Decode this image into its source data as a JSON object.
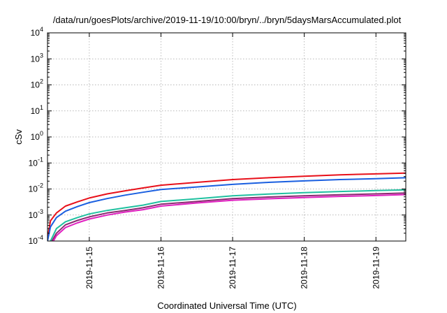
{
  "chart_data": {
    "type": "line",
    "title": "/data/run/goesPlots/archive/2019-11-19/10:00/bryn/../bryn/5daysMarsAccumulated.plot",
    "xlabel": "Coordinated Universal Time (UTC)",
    "ylabel": "cSv",
    "y_scale": "log",
    "ylim": [
      0.0001,
      10000
    ],
    "y_ticks": [
      {
        "base": "10",
        "exp": "-4",
        "value": 0.0001
      },
      {
        "base": "10",
        "exp": "-3",
        "value": 0.001
      },
      {
        "base": "10",
        "exp": "-2",
        "value": 0.01
      },
      {
        "base": "10",
        "exp": "-1",
        "value": 0.1
      },
      {
        "base": "10",
        "exp": "0",
        "value": 1
      },
      {
        "base": "10",
        "exp": "1",
        "value": 10
      },
      {
        "base": "10",
        "exp": "2",
        "value": 100
      },
      {
        "base": "10",
        "exp": "3",
        "value": 1000
      },
      {
        "base": "10",
        "exp": "4",
        "value": 10000
      }
    ],
    "xlim": [
      "2019-11-14 10:00",
      "2019-11-19 10:00"
    ],
    "x_ticks": [
      {
        "label": "2019-11-15",
        "value": "2019-11-15 00:00"
      },
      {
        "label": "2019-11-16",
        "value": "2019-11-16 00:00"
      },
      {
        "label": "2019-11-17",
        "value": "2019-11-17 00:00"
      },
      {
        "label": "2019-11-18",
        "value": "2019-11-18 00:00"
      },
      {
        "label": "2019-11-19",
        "value": "2019-11-19 00:00"
      }
    ],
    "grid": true,
    "legend": "none",
    "series": [
      {
        "color": "#e8101a",
        "points": [
          [
            "2019-11-14 10:00",
            0.00013
          ],
          [
            "2019-11-14 11:00",
            0.0006
          ],
          [
            "2019-11-14 13:00",
            0.0012
          ],
          [
            "2019-11-14 16:00",
            0.0022
          ],
          [
            "2019-11-14 20:00",
            0.0032
          ],
          [
            "2019-11-15 00:00",
            0.0045
          ],
          [
            "2019-11-15 06:00",
            0.0065
          ],
          [
            "2019-11-15 12:00",
            0.0085
          ],
          [
            "2019-11-15 18:00",
            0.011
          ],
          [
            "2019-11-16 00:00",
            0.014
          ],
          [
            "2019-11-16 12:00",
            0.018
          ],
          [
            "2019-11-17 00:00",
            0.023
          ],
          [
            "2019-11-17 12:00",
            0.027
          ],
          [
            "2019-11-18 00:00",
            0.031
          ],
          [
            "2019-11-18 12:00",
            0.035
          ],
          [
            "2019-11-19 00:00",
            0.038
          ],
          [
            "2019-11-19 10:00",
            0.041
          ]
        ]
      },
      {
        "color": "#1a5fe0",
        "points": [
          [
            "2019-11-14 10:00",
            0.0001
          ],
          [
            "2019-11-14 11:00",
            0.00035
          ],
          [
            "2019-11-14 13:00",
            0.0008
          ],
          [
            "2019-11-14 16:00",
            0.0014
          ],
          [
            "2019-11-14 20:00",
            0.0021
          ],
          [
            "2019-11-15 00:00",
            0.003
          ],
          [
            "2019-11-15 06:00",
            0.0043
          ],
          [
            "2019-11-15 12:00",
            0.0058
          ],
          [
            "2019-11-15 18:00",
            0.0075
          ],
          [
            "2019-11-16 00:00",
            0.0095
          ],
          [
            "2019-11-16 12:00",
            0.012
          ],
          [
            "2019-11-17 00:00",
            0.015
          ],
          [
            "2019-11-17 12:00",
            0.018
          ],
          [
            "2019-11-18 00:00",
            0.0205
          ],
          [
            "2019-11-18 12:00",
            0.023
          ],
          [
            "2019-11-19 00:00",
            0.025
          ],
          [
            "2019-11-19 10:00",
            0.027
          ]
        ]
      },
      {
        "color": "#20c0a0",
        "points": [
          [
            "2019-11-14 11:00",
            0.0001
          ],
          [
            "2019-11-14 13:00",
            0.0003
          ],
          [
            "2019-11-14 16:00",
            0.00055
          ],
          [
            "2019-11-14 20:00",
            0.0008
          ],
          [
            "2019-11-15 00:00",
            0.0011
          ],
          [
            "2019-11-15 06:00",
            0.0015
          ],
          [
            "2019-11-15 12:00",
            0.0019
          ],
          [
            "2019-11-15 18:00",
            0.0024
          ],
          [
            "2019-11-16 00:00",
            0.0033
          ],
          [
            "2019-11-16 12:00",
            0.0042
          ],
          [
            "2019-11-17 00:00",
            0.0055
          ],
          [
            "2019-11-17 12:00",
            0.0064
          ],
          [
            "2019-11-18 00:00",
            0.0072
          ],
          [
            "2019-11-18 12:00",
            0.008
          ],
          [
            "2019-11-19 00:00",
            0.0087
          ],
          [
            "2019-11-19 10:00",
            0.0093
          ]
        ]
      },
      {
        "color": "#8a2a70",
        "points": [
          [
            "2019-11-14 11:30",
            0.0001
          ],
          [
            "2019-11-14 13:00",
            0.0002
          ],
          [
            "2019-11-14 16:00",
            0.00042
          ],
          [
            "2019-11-14 20:00",
            0.00062
          ],
          [
            "2019-11-15 00:00",
            0.00085
          ],
          [
            "2019-11-15 06:00",
            0.0012
          ],
          [
            "2019-11-15 12:00",
            0.0015
          ],
          [
            "2019-11-15 18:00",
            0.0019
          ],
          [
            "2019-11-16 00:00",
            0.0026
          ],
          [
            "2019-11-16 12:00",
            0.0033
          ],
          [
            "2019-11-17 00:00",
            0.0043
          ],
          [
            "2019-11-17 12:00",
            0.0049
          ],
          [
            "2019-11-18 00:00",
            0.0055
          ],
          [
            "2019-11-18 12:00",
            0.006
          ],
          [
            "2019-11-19 00:00",
            0.0065
          ],
          [
            "2019-11-19 10:00",
            0.007
          ]
        ]
      },
      {
        "color": "#e020c0",
        "points": [
          [
            "2019-11-14 12:00",
            0.0001
          ],
          [
            "2019-11-14 13:00",
            0.00016
          ],
          [
            "2019-11-14 16:00",
            0.00033
          ],
          [
            "2019-11-14 20:00",
            0.0005
          ],
          [
            "2019-11-15 00:00",
            0.0007
          ],
          [
            "2019-11-15 06:00",
            0.001
          ],
          [
            "2019-11-15 12:00",
            0.0013
          ],
          [
            "2019-11-15 18:00",
            0.0016
          ],
          [
            "2019-11-16 00:00",
            0.0022
          ],
          [
            "2019-11-16 12:00",
            0.0029
          ],
          [
            "2019-11-17 00:00",
            0.0037
          ],
          [
            "2019-11-17 12:00",
            0.0042
          ],
          [
            "2019-11-18 00:00",
            0.0047
          ],
          [
            "2019-11-18 12:00",
            0.0052
          ],
          [
            "2019-11-19 00:00",
            0.0056
          ],
          [
            "2019-11-19 10:00",
            0.0061
          ]
        ]
      }
    ]
  }
}
